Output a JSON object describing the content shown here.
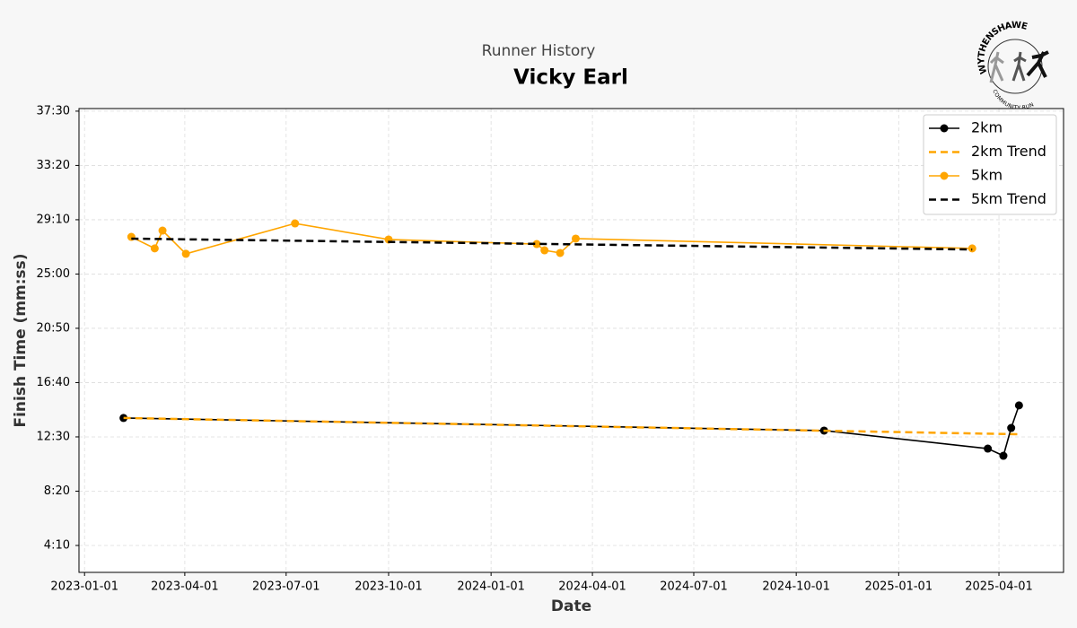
{
  "chart_data": {
    "type": "line",
    "subtitle": "Runner History",
    "title": "Vicky Earl",
    "logo_text": "WYTHENSHAWE",
    "logo_subtext": "COMMUNITY RUN",
    "x_label": "Date",
    "y_label": "Finish Time (mm:ss)",
    "xlim": [
      "2022-12-27",
      "2025-05-29"
    ],
    "xticks": [
      "2023-01-01",
      "2023-04-01",
      "2023-07-01",
      "2023-10-01",
      "2024-01-01",
      "2024-04-01",
      "2024-07-01",
      "2024-10-01",
      "2025-01-01",
      "2025-04-01"
    ],
    "ylim": [
      126,
      2262
    ],
    "yticks": [
      {
        "value": 250,
        "label": "4:10"
      },
      {
        "value": 500,
        "label": "8:20"
      },
      {
        "value": 750,
        "label": "12:30"
      },
      {
        "value": 1000,
        "label": "16:40"
      },
      {
        "value": 1250,
        "label": "20:50"
      },
      {
        "value": 1500,
        "label": "25:00"
      },
      {
        "value": 1750,
        "label": "29:10"
      },
      {
        "value": 2000,
        "label": "33:20"
      },
      {
        "value": 2250,
        "label": "37:30"
      }
    ],
    "grid": true,
    "legend": "upper right",
    "series": [
      {
        "name": "2km",
        "color": "#000000",
        "marker": true,
        "dashed": false,
        "x": [
          "2023-02-05",
          "2024-10-26",
          "2025-03-22",
          "2025-04-05",
          "2025-04-12",
          "2025-04-19"
        ],
        "values": [
          837,
          779,
          696,
          663,
          791,
          895
        ]
      },
      {
        "name": "2km Trend",
        "color": "#ffa500",
        "marker": false,
        "dashed": true,
        "x": [
          "2023-02-05",
          "2025-04-19"
        ],
        "values": [
          837,
          762
        ]
      },
      {
        "name": "5km",
        "color": "#ffa500",
        "marker": true,
        "dashed": false,
        "x": [
          "2023-02-12",
          "2023-03-05",
          "2023-03-12",
          "2023-04-02",
          "2023-07-09",
          "2023-10-01",
          "2024-02-11",
          "2024-02-18",
          "2024-03-03",
          "2024-03-17",
          "2025-03-08"
        ],
        "values": [
          1671,
          1618,
          1700,
          1593,
          1733,
          1659,
          1638,
          1609,
          1597,
          1663,
          1618
        ]
      },
      {
        "name": "5km Trend",
        "color": "#000000",
        "marker": false,
        "dashed": true,
        "x": [
          "2023-02-12",
          "2025-03-08"
        ],
        "values": [
          1663,
          1613
        ]
      }
    ]
  }
}
